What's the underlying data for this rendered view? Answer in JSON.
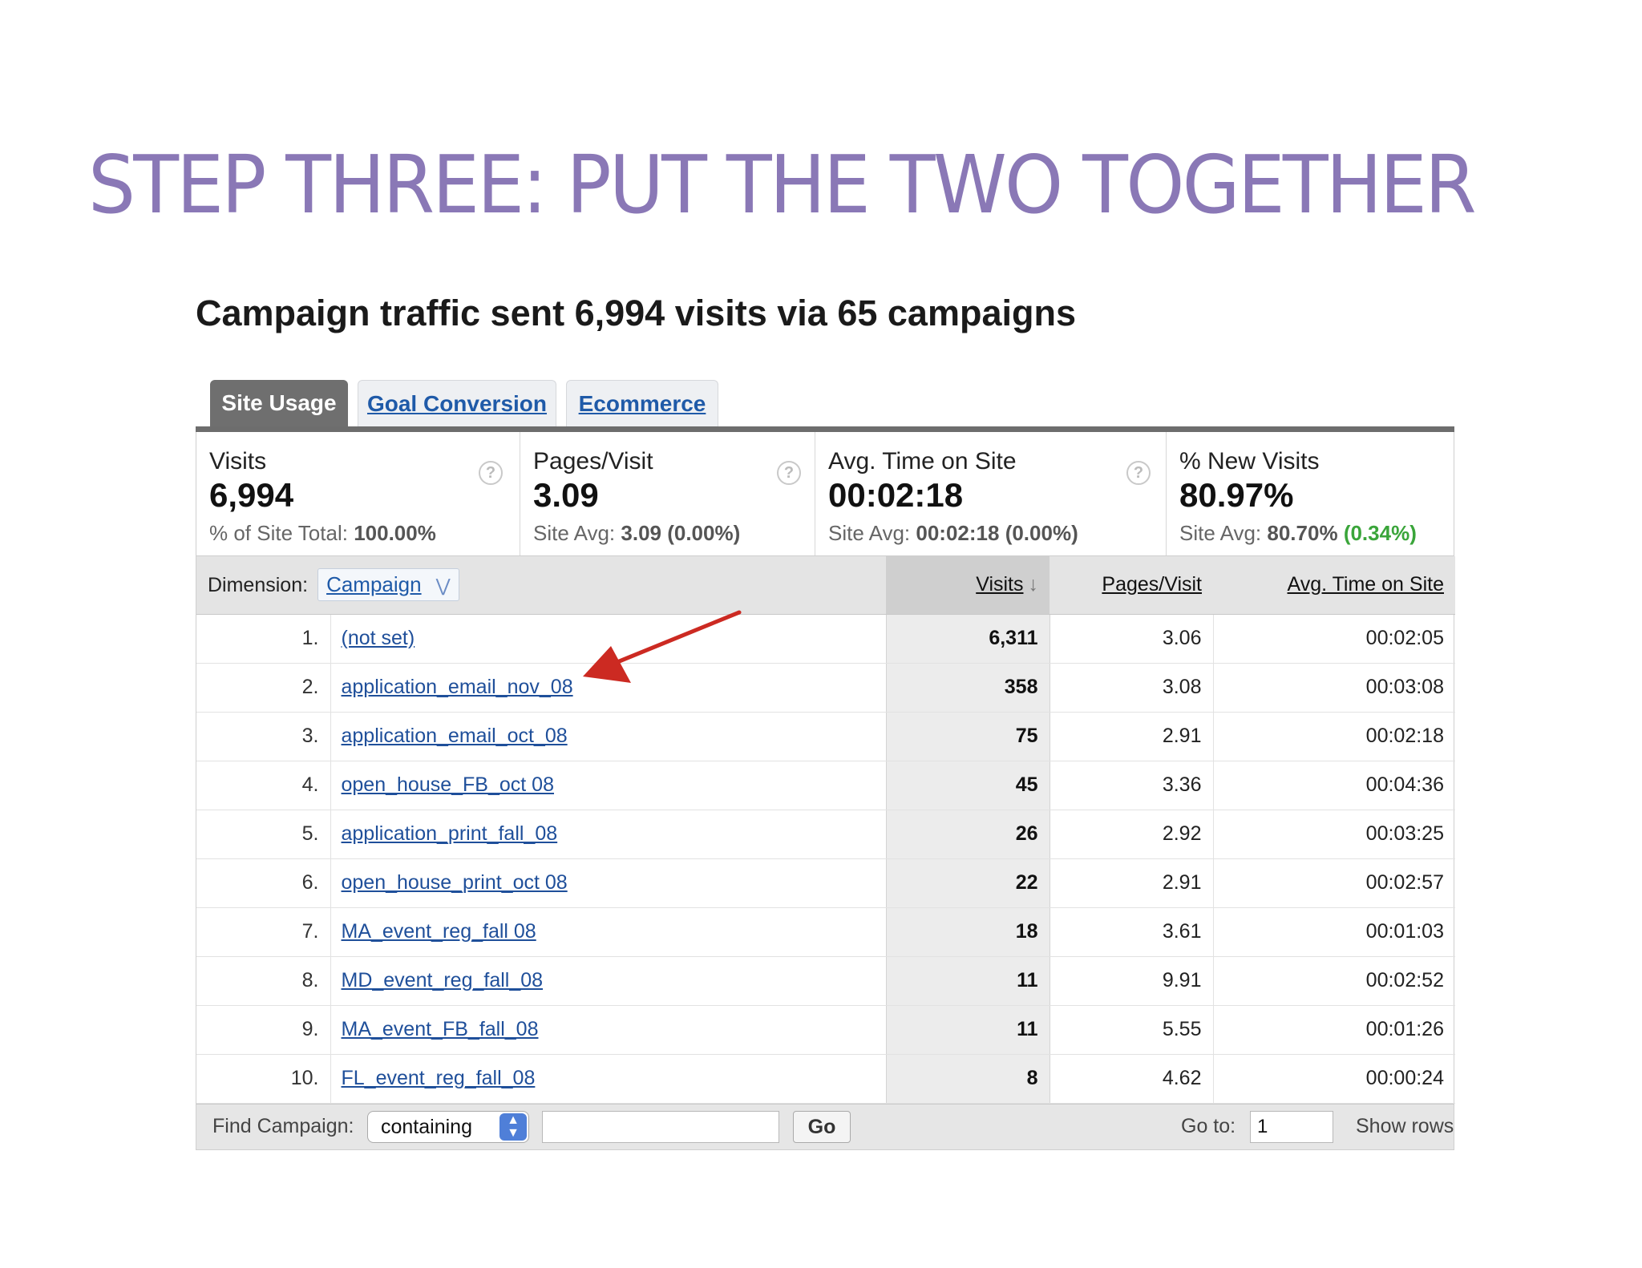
{
  "slide": {
    "title": "STEP THREE: PUT THE TWO TOGETHER"
  },
  "report": {
    "heading": "Campaign traffic sent 6,994 visits via 65 campaigns",
    "tabs": [
      {
        "label": "Site Usage"
      },
      {
        "label": "Goal Conversion"
      },
      {
        "label": "Ecommerce"
      }
    ],
    "scorecards": [
      {
        "label": "Visits",
        "value": "6,994",
        "sub_prefix": "% of Site Total:",
        "sub_value": "100.00%",
        "sub_change": ""
      },
      {
        "label": "Pages/Visit",
        "value": "3.09",
        "sub_prefix": "Site Avg:",
        "sub_value": "3.09 (0.00%)",
        "sub_change": ""
      },
      {
        "label": "Avg. Time on Site",
        "value": "00:02:18",
        "sub_prefix": "Site Avg:",
        "sub_value": "00:02:18 (0.00%)",
        "sub_change": ""
      },
      {
        "label": "% New Visits",
        "value": "80.97%",
        "sub_prefix": "Site Avg:",
        "sub_value": "80.70%",
        "sub_change": "(0.34%)"
      }
    ],
    "help_glyph": "?",
    "table": {
      "dimension_label": "Dimension:",
      "dimension_value": "Campaign",
      "columns": {
        "visits": "Visits",
        "pages_visit": "Pages/Visit",
        "avg_time": "Avg. Time on Site"
      },
      "rows": [
        {
          "rank": "1.",
          "campaign": "(not set)",
          "visits": "6,311",
          "pages_visit": "3.06",
          "avg_time": "00:02:05"
        },
        {
          "rank": "2.",
          "campaign": "application_email_nov_08",
          "visits": "358",
          "pages_visit": "3.08",
          "avg_time": "00:03:08"
        },
        {
          "rank": "3.",
          "campaign": "application_email_oct_08",
          "visits": "75",
          "pages_visit": "2.91",
          "avg_time": "00:02:18"
        },
        {
          "rank": "4.",
          "campaign": "open_house_FB_oct 08",
          "visits": "45",
          "pages_visit": "3.36",
          "avg_time": "00:04:36"
        },
        {
          "rank": "5.",
          "campaign": "application_print_fall_08",
          "visits": "26",
          "pages_visit": "2.92",
          "avg_time": "00:03:25"
        },
        {
          "rank": "6.",
          "campaign": "open_house_print_oct 08",
          "visits": "22",
          "pages_visit": "2.91",
          "avg_time": "00:02:57"
        },
        {
          "rank": "7.",
          "campaign": "MA_event_reg_fall 08",
          "visits": "18",
          "pages_visit": "3.61",
          "avg_time": "00:01:03"
        },
        {
          "rank": "8.",
          "campaign": "MD_event_reg_fall_08",
          "visits": "11",
          "pages_visit": "9.91",
          "avg_time": "00:02:52"
        },
        {
          "rank": "9.",
          "campaign": "MA_event_FB_fall_08",
          "visits": "11",
          "pages_visit": "5.55",
          "avg_time": "00:01:26"
        },
        {
          "rank": "10.",
          "campaign": "FL_event_reg_fall_08",
          "visits": "8",
          "pages_visit": "4.62",
          "avg_time": "00:00:24"
        }
      ]
    },
    "footer": {
      "find_label": "Find Campaign:",
      "match_value": "containing",
      "find_value": "",
      "go_label": "Go",
      "goto_label": "Go to:",
      "goto_value": "1",
      "show_rows_label": "Show rows"
    },
    "annotation": {
      "arrow_color": "#cc2a22"
    }
  }
}
